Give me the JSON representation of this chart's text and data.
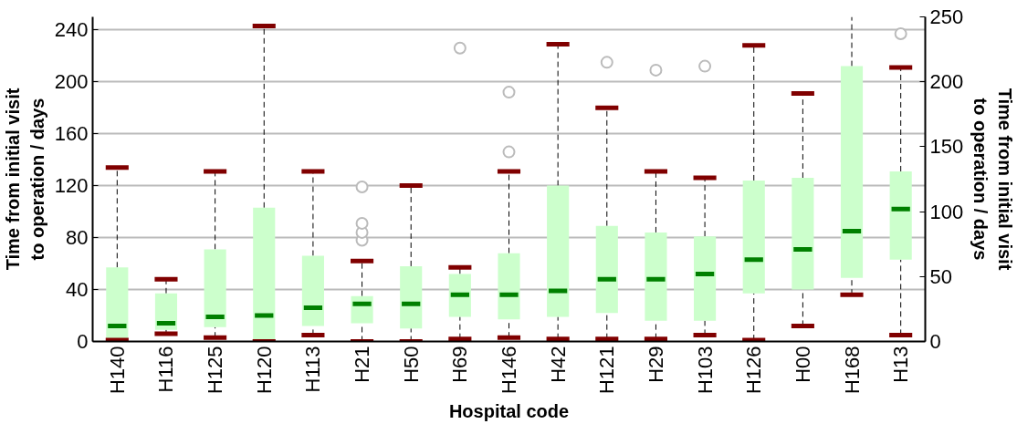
{
  "chart_data": {
    "type": "box",
    "xlabel": "Hospital code",
    "ylabel": "Time from initial visit to operation / days",
    "y2label": "Time from initial visit to operation / days",
    "categories": [
      "H140",
      "H116",
      "H125",
      "H120",
      "H113",
      "H21",
      "H50",
      "H69",
      "H146",
      "H42",
      "H121",
      "H29",
      "H103",
      "H126",
      "H00",
      "H168",
      "H13"
    ],
    "boxes": [
      {
        "low": 1,
        "q1": 1,
        "median": 12,
        "q3": 57,
        "high": 134
      },
      {
        "low": 6,
        "q1": 9,
        "median": 14,
        "q3": 37,
        "high": 48
      },
      {
        "low": 3,
        "q1": 11,
        "median": 19,
        "q3": 71,
        "high": 131
      },
      {
        "low": 0,
        "q1": 1,
        "median": 20,
        "q3": 103,
        "high": 243
      },
      {
        "low": 5,
        "q1": 12,
        "median": 26,
        "q3": 66,
        "high": 131
      },
      {
        "low": 0,
        "q1": 14,
        "median": 29,
        "q3": 35,
        "high": 62,
        "outliers": [
          78,
          84,
          91,
          119
        ]
      },
      {
        "low": 0,
        "q1": 10,
        "median": 29,
        "q3": 58,
        "high": 120
      },
      {
        "low": 2,
        "q1": 19,
        "median": 36,
        "q3": 52,
        "high": 57,
        "outliers": [
          226
        ]
      },
      {
        "low": 3,
        "q1": 17,
        "median": 36,
        "q3": 68,
        "high": 131,
        "outliers": [
          146,
          192
        ]
      },
      {
        "low": 2,
        "q1": 19,
        "median": 39,
        "q3": 120,
        "high": 229
      },
      {
        "low": 2,
        "q1": 22,
        "median": 48,
        "q3": 89,
        "high": 180,
        "outliers": [
          215
        ]
      },
      {
        "low": 2,
        "q1": 16,
        "median": 48,
        "q3": 84,
        "high": 131,
        "outliers": [
          209
        ]
      },
      {
        "low": 5,
        "q1": 16,
        "median": 52,
        "q3": 81,
        "high": 126,
        "outliers": [
          212
        ]
      },
      {
        "low": 1,
        "q1": 37,
        "median": 63,
        "q3": 124,
        "high": 228
      },
      {
        "low": 12,
        "q1": 40,
        "median": 71,
        "q3": 126,
        "high": 191
      },
      {
        "low": 36,
        "q1": 49,
        "median": 85,
        "q3": 212,
        "high": 250
      },
      {
        "low": 5,
        "q1": 63,
        "median": 102,
        "q3": 131,
        "high": 211,
        "outliers": [
          237
        ]
      }
    ],
    "color": "#ccffcc",
    "ylim": [
      0,
      250
    ],
    "yticks": [
      0,
      40,
      80,
      120,
      160,
      200,
      240
    ],
    "y2lim": [
      0,
      250
    ],
    "y2ticks": [
      0,
      50,
      100,
      150,
      200,
      250
    ],
    "grid": "y"
  }
}
